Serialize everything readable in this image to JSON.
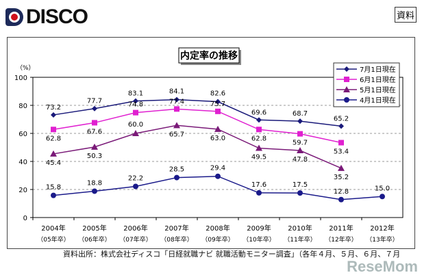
{
  "header": {
    "logo": "DISCO",
    "badge": "資料"
  },
  "chart_data": {
    "type": "line",
    "title": "内定率の推移",
    "ylabel": "（%）",
    "ylim": [
      0,
      100
    ],
    "yticks": [
      0,
      20,
      40,
      60,
      80,
      100
    ],
    "grid": "dashed horizontal",
    "legend_position": "top-right",
    "categories": [
      "2004年",
      "2005年",
      "2006年",
      "2007年",
      "2008年",
      "2009年",
      "2010年",
      "2011年",
      "2012年"
    ],
    "subcategories": [
      "（05年卒）",
      "（06年卒）",
      "（07年卒）",
      "（08年卒）",
      "（09年卒）",
      "（10年卒）",
      "（11年卒）",
      "（12年卒）",
      "（13年卒）"
    ],
    "series": [
      {
        "name": "7月1日現在",
        "color": "#1a1a7a",
        "marker": "diamond",
        "values": [
          73.2,
          77.7,
          83.1,
          84.1,
          82.6,
          69.6,
          68.7,
          65.2,
          null
        ]
      },
      {
        "name": "6月1日現在",
        "color": "#e020d0",
        "marker": "square",
        "values": [
          62.8,
          67.6,
          74.8,
          77.4,
          75.7,
          62.8,
          59.7,
          53.4,
          null
        ]
      },
      {
        "name": "5月1日現在",
        "color": "#7a1a78",
        "marker": "triangle",
        "values": [
          45.4,
          50.3,
          60.0,
          65.7,
          63.0,
          49.5,
          47.8,
          35.2,
          null
        ]
      },
      {
        "name": "4月1日現在",
        "color": "#1a1a8a",
        "marker": "circle",
        "values": [
          15.8,
          18.8,
          22.2,
          28.5,
          29.4,
          17.6,
          17.5,
          12.8,
          15.0
        ]
      }
    ]
  },
  "footer": {
    "source": "資料出所：株式会社ディスコ「日経就職ナビ 就職活動モニター調査」（各年４月、５月、６月、７月",
    "watermark": "ReseMom"
  }
}
